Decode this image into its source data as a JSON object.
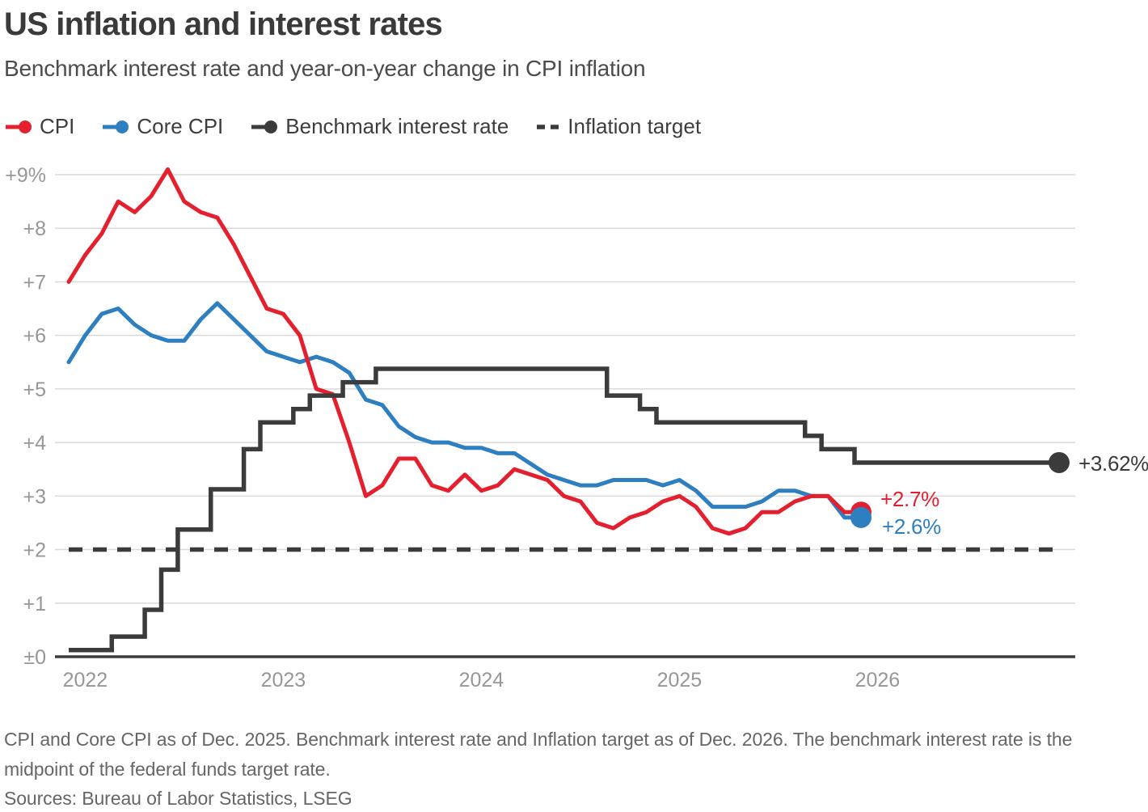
{
  "header": {
    "title": "US inflation and interest rates",
    "subtitle": "Benchmark interest rate and year-on-year change in CPI inflation"
  },
  "chart_data": {
    "type": "line",
    "x_unit": "month",
    "x_start_label": "2022",
    "grid": "horizontal",
    "series": [
      {
        "id": "cpi",
        "name": "CPI",
        "style": "line",
        "color": "#e5202e",
        "first_point": "Dec 2021",
        "last_point": "Dec 2025",
        "values": [
          7.0,
          7.5,
          7.9,
          8.5,
          8.3,
          8.6,
          9.1,
          8.5,
          8.3,
          8.2,
          7.7,
          7.1,
          6.5,
          6.4,
          6.0,
          5.0,
          4.9,
          4.0,
          3.0,
          3.2,
          3.7,
          3.7,
          3.2,
          3.1,
          3.4,
          3.1,
          3.2,
          3.5,
          3.4,
          3.3,
          3.0,
          2.9,
          2.5,
          2.4,
          2.6,
          2.7,
          2.9,
          3.0,
          2.8,
          2.4,
          2.3,
          2.4,
          2.7,
          2.7,
          2.9,
          3.0,
          3.0,
          2.7,
          2.7
        ]
      },
      {
        "id": "core_cpi",
        "name": "Core CPI",
        "style": "line",
        "color": "#2e7fbf",
        "first_point": "Dec 2021",
        "last_point": "Dec 2025",
        "values": [
          5.5,
          6.0,
          6.4,
          6.5,
          6.2,
          6.0,
          5.9,
          5.9,
          6.3,
          6.6,
          6.3,
          6.0,
          5.7,
          5.6,
          5.5,
          5.6,
          5.5,
          5.3,
          4.8,
          4.7,
          4.3,
          4.1,
          4.0,
          4.0,
          3.9,
          3.9,
          3.8,
          3.8,
          3.6,
          3.4,
          3.3,
          3.2,
          3.2,
          3.3,
          3.3,
          3.3,
          3.2,
          3.3,
          3.1,
          2.8,
          2.8,
          2.8,
          2.9,
          3.1,
          3.1,
          3.0,
          3.0,
          2.6,
          2.6
        ]
      },
      {
        "id": "benchmark",
        "name": "Benchmark interest rate",
        "style": "step",
        "color": "#3b3b3b",
        "first_point": "Dec 2021",
        "last_point": "Dec 2026",
        "values": [
          0.125,
          0.125,
          0.125,
          0.375,
          0.375,
          0.875,
          1.625,
          2.375,
          2.375,
          3.125,
          3.125,
          3.875,
          4.375,
          4.375,
          4.625,
          4.875,
          4.875,
          5.125,
          5.125,
          5.375,
          5.375,
          5.375,
          5.375,
          5.375,
          5.375,
          5.375,
          5.375,
          5.375,
          5.375,
          5.375,
          5.375,
          5.375,
          5.375,
          4.875,
          4.875,
          4.625,
          4.375,
          4.375,
          4.375,
          4.375,
          4.375,
          4.375,
          4.375,
          4.375,
          4.375,
          4.125,
          3.875,
          3.875,
          3.625,
          3.625,
          3.625,
          3.625,
          3.625,
          3.625,
          3.625,
          3.625,
          3.625,
          3.625,
          3.625,
          3.625,
          3.625
        ]
      },
      {
        "id": "target",
        "name": "Inflation target",
        "style": "dashed",
        "color": "#3b3b3b",
        "value": 2.0
      }
    ],
    "y_axis": {
      "range": [
        0,
        9
      ],
      "ticks": [
        {
          "value": 9,
          "label": "+9%"
        },
        {
          "value": 8,
          "label": "+8"
        },
        {
          "value": 7,
          "label": "+7"
        },
        {
          "value": 6,
          "label": "+6"
        },
        {
          "value": 5,
          "label": "+5"
        },
        {
          "value": 4,
          "label": "+4"
        },
        {
          "value": 3,
          "label": "+3"
        },
        {
          "value": 2,
          "label": "+2"
        },
        {
          "value": 1,
          "label": "+1"
        },
        {
          "value": 0,
          "label": "±0"
        }
      ]
    },
    "x_axis": {
      "ticks": [
        {
          "label": "2022",
          "month_index": 1
        },
        {
          "label": "2023",
          "month_index": 13
        },
        {
          "label": "2024",
          "month_index": 25
        },
        {
          "label": "2025",
          "month_index": 37
        },
        {
          "label": "2026",
          "month_index": 49
        }
      ]
    },
    "annotations": [
      {
        "id": "benchmark-end",
        "text": "+3.62%"
      },
      {
        "id": "cpi-end",
        "text": "+2.7%"
      },
      {
        "id": "core-end",
        "text": "+2.6%"
      }
    ]
  },
  "footer": {
    "note": "CPI and Core CPI as of Dec. 2025. Benchmark interest rate and Inflation target as of Dec. 2026. The benchmark interest rate is the midpoint of the federal funds target rate.",
    "sources": "Sources: Bureau of Labor Statistics, LSEG"
  }
}
